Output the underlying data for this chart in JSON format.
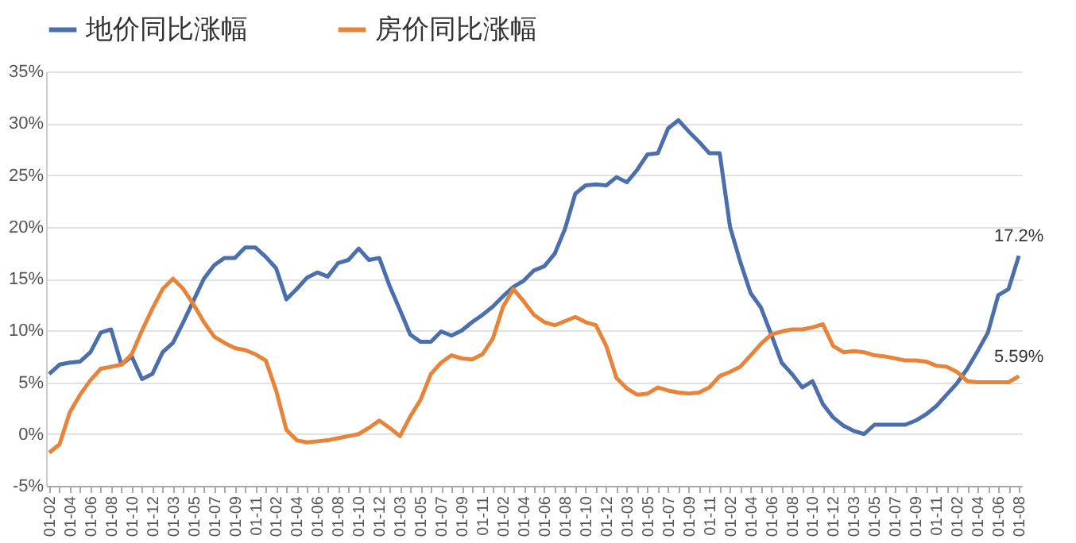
{
  "chart_data": {
    "type": "line",
    "categories": [
      "01-02",
      null,
      "01-04",
      null,
      "01-06",
      null,
      "01-08",
      null,
      "01-10",
      null,
      "01-12",
      null,
      "01-03",
      null,
      "01-05",
      null,
      "01-07",
      null,
      "01-09",
      null,
      "01-11",
      null,
      "01-02",
      null,
      "01-04",
      null,
      "01-06",
      null,
      "01-08",
      null,
      "01-10",
      null,
      "01-12",
      null,
      "01-03",
      null,
      "01-05",
      null,
      "01-07",
      null,
      "01-09",
      null,
      "01-11",
      null,
      "01-02",
      null,
      "01-04",
      null,
      "01-06",
      null,
      "01-08",
      null,
      "01-10",
      null,
      "01-12",
      null,
      "01-03",
      null,
      "01-05",
      null,
      "01-07",
      null,
      "01-09",
      null,
      "01-11",
      null,
      "01-02",
      null,
      "01-04",
      null,
      "01-06",
      null,
      "01-08",
      null,
      "01-10",
      null,
      "01-12",
      null,
      "01-03",
      null,
      "01-05",
      null,
      "01-07",
      null,
      "01-09",
      null,
      "01-11",
      null,
      "01-02",
      null,
      "01-04",
      null,
      "01-06",
      null,
      "01-08"
    ],
    "series": [
      {
        "name": "地价同比涨幅",
        "color": "#4a6fac",
        "values": [
          5.8,
          6.7,
          6.9,
          7.0,
          7.9,
          9.8,
          10.1,
          6.7,
          7.5,
          5.3,
          5.8,
          7.9,
          8.8,
          10.8,
          12.9,
          15.0,
          16.3,
          17.0,
          17.0,
          18.0,
          18.0,
          17.1,
          16.0,
          13.0,
          14.0,
          15.1,
          15.6,
          15.2,
          16.5,
          16.8,
          17.9,
          16.8,
          17.0,
          14.3,
          12.0,
          9.6,
          8.9,
          8.9,
          9.9,
          9.5,
          10.0,
          10.8,
          11.5,
          12.3,
          13.3,
          14.2,
          14.8,
          15.8,
          16.2,
          17.4,
          19.8,
          23.2,
          24.0,
          24.1,
          24.0,
          24.8,
          24.3,
          25.5,
          27.0,
          27.1,
          29.5,
          30.3,
          29.2,
          28.2,
          27.1,
          27.1,
          20.0,
          16.6,
          13.6,
          12.2,
          9.6,
          6.9,
          5.8,
          4.5,
          5.1,
          2.9,
          1.6,
          0.8,
          0.3,
          0,
          0.9,
          0.9,
          0.9,
          0.9,
          1.3,
          1.9,
          2.7,
          3.8,
          4.9,
          6.3,
          8.0,
          9.8,
          13.4,
          14.0,
          17.2
        ]
      },
      {
        "name": "房价同比涨幅",
        "color": "#e8843a",
        "values": [
          -1.8,
          -1.0,
          2.1,
          3.8,
          5.2,
          6.3,
          6.5,
          6.7,
          7.7,
          10.0,
          12.1,
          14.0,
          15.0,
          14.0,
          12.5,
          10.8,
          9.4,
          8.8,
          8.3,
          8.1,
          7.7,
          7.1,
          4.2,
          0.4,
          -0.6,
          -0.8,
          -0.7,
          -0.6,
          -0.4,
          -0.2,
          0.0,
          0.6,
          1.3,
          0.6,
          -0.2,
          1.7,
          3.3,
          5.8,
          6.9,
          7.6,
          7.3,
          7.2,
          7.7,
          9.2,
          12.3,
          14.0,
          12.8,
          11.5,
          10.8,
          10.5,
          10.9,
          11.3,
          10.8,
          10.5,
          8.5,
          5.4,
          4.4,
          3.8,
          3.9,
          4.5,
          4.2,
          4.0,
          3.9,
          4.0,
          4.5,
          5.6,
          6.0,
          6.5,
          7.6,
          8.7,
          9.6,
          9.9,
          10.1,
          10.1,
          10.3,
          10.6,
          8.5,
          7.9,
          8.0,
          7.9,
          7.6,
          7.5,
          7.3,
          7.1,
          7.1,
          7.0,
          6.6,
          6.5,
          6.0,
          5.1,
          5.0,
          5.0,
          5.0,
          5.0,
          5.59
        ]
      }
    ],
    "ylim": [
      -5,
      35
    ],
    "yticks": [
      {
        "value": -5,
        "label": "-5%"
      },
      {
        "value": 0,
        "label": "0%"
      },
      {
        "value": 5,
        "label": "5%"
      },
      {
        "value": 10,
        "label": "10%"
      },
      {
        "value": 15,
        "label": "15%"
      },
      {
        "value": 20,
        "label": "20%"
      },
      {
        "value": 25,
        "label": "25%"
      },
      {
        "value": 30,
        "label": "30%"
      },
      {
        "value": 35,
        "label": "35%"
      }
    ],
    "grid": "y",
    "legend": "top",
    "marker": "none",
    "line_style": "solid",
    "annotations": [
      "17.2%",
      "5.59%"
    ]
  }
}
